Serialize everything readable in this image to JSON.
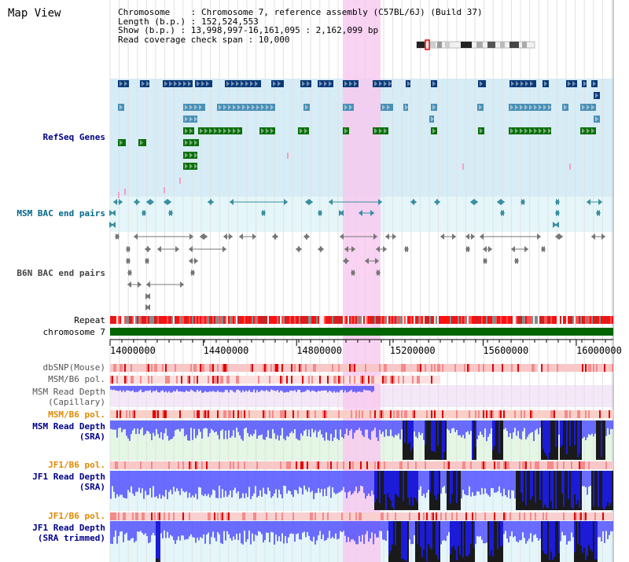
{
  "title": "Map View",
  "info": {
    "line1": "Chromosome    : Chromosome 7, reference assembly (C57BL/6J) (Build 37)",
    "line2": "Length (b.p.) : 152,524,553",
    "line3": "Show (b.p.) : 13,998,997-16,161,095 : 2,162,099 bp",
    "line4": "Read coverage check span : 10,000"
  },
  "tracks": {
    "refseq": "RefSeq Genes",
    "msm_bac": "MSM BAC end pairs",
    "b6n_bac": "B6N BAC end pairs",
    "repeat": "Repeat",
    "chromosome": "chromosome 7",
    "dbsnp": "dbSNP(Mouse)",
    "msm_b6_pol_1": "MSM/B6 pol.",
    "msm_read_depth_cap_1": "MSM Read Depth",
    "msm_read_depth_cap_2": "(Capillary)",
    "msm_b6_pol_2": "MSM/B6 pol.",
    "msm_read_depth_sra_1": "MSM Read Depth",
    "msm_read_depth_sra_2": "(SRA)",
    "jf1_b6_pol_1": "JF1/B6 pol.",
    "jf1_read_depth_sra_1": "JF1 Read Depth",
    "jf1_read_depth_sra_2": "(SRA)",
    "jf1_b6_pol_2": "JF1/B6 pol.",
    "jf1_read_depth_trim_1": "JF1 Read Depth",
    "jf1_read_depth_trim_2": "(SRA trimmed)"
  },
  "axis": {
    "ticks": [
      "14000000",
      "14400000",
      "14800000",
      "15200000",
      "15600000",
      "16000000"
    ]
  },
  "colors": {
    "highlight": "#f7c8ef",
    "refseq_bg": "#d6ecf6",
    "bac_bg": "#e4f6f9",
    "gene_navy": "#0a3a78",
    "gene_steel": "#4a8fb5",
    "gene_green": "#0a6e0a",
    "chrom_green": "#006400",
    "depth_blue": "#4a4aff",
    "overflow": "#1a1a1a"
  }
}
